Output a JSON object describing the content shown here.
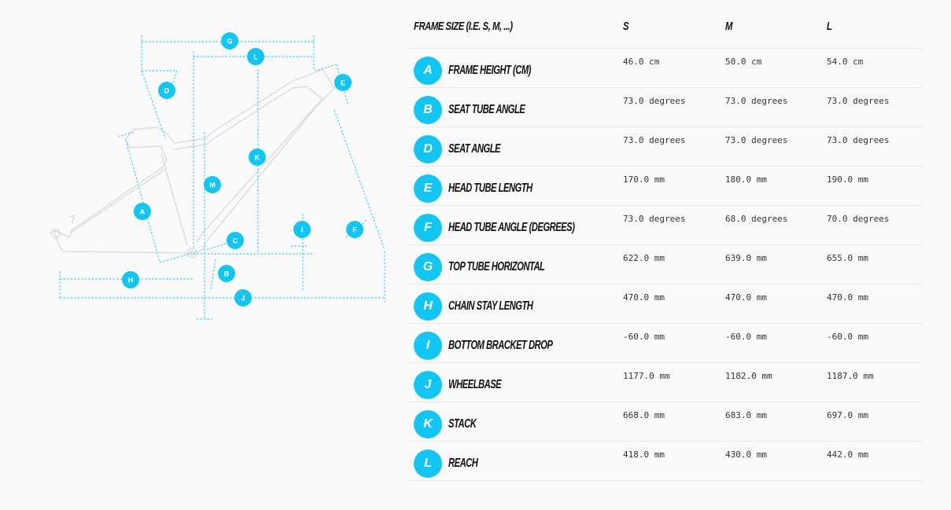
{
  "table": {
    "header": {
      "label": "FRAME SIZE (I.E. S, M, ...)",
      "sizes": [
        "S",
        "M",
        "L"
      ]
    },
    "rows": [
      {
        "letter": "A",
        "label": "FRAME HEIGHT (CM)",
        "values": [
          "46.0 cm",
          "50.0 cm",
          "54.0 cm"
        ]
      },
      {
        "letter": "B",
        "label": "SEAT TUBE ANGLE",
        "values": [
          "73.0 degrees",
          "73.0 degrees",
          "73.0 degrees"
        ]
      },
      {
        "letter": "D",
        "label": "SEAT ANGLE",
        "values": [
          "73.0 degrees",
          "73.0 degrees",
          "73.0 degrees"
        ]
      },
      {
        "letter": "E",
        "label": "HEAD TUBE LENGTH",
        "values": [
          "170.0 mm",
          "180.0 mm",
          "190.0 mm"
        ]
      },
      {
        "letter": "F",
        "label": "HEAD TUBE ANGLE (DEGREES)",
        "values": [
          "73.0 degrees",
          "68.0 degrees",
          "70.0 degrees"
        ]
      },
      {
        "letter": "G",
        "label": "TOP TUBE HORIZONTAL",
        "values": [
          "622.0 mm",
          "639.0 mm",
          "655.0 mm"
        ]
      },
      {
        "letter": "H",
        "label": "CHAIN STAY LENGTH",
        "values": [
          "470.0 mm",
          "470.0 mm",
          "470.0 mm"
        ]
      },
      {
        "letter": "I",
        "label": "BOTTOM BRACKET DROP",
        "values": [
          "-60.0 mm",
          "-60.0 mm",
          "-60.0 mm"
        ]
      },
      {
        "letter": "J",
        "label": "WHEELBASE",
        "values": [
          "1177.0 mm",
          "1182.0 mm",
          "1187.0 mm"
        ]
      },
      {
        "letter": "K",
        "label": "STACK",
        "values": [
          "668.0 mm",
          "683.0 mm",
          "697.0 mm"
        ]
      },
      {
        "letter": "L",
        "label": "REACH",
        "values": [
          "418.0 mm",
          "430.0 mm",
          "442.0 mm"
        ]
      }
    ]
  },
  "diagram": {
    "markers": [
      "G",
      "L",
      "D",
      "E",
      "K",
      "M",
      "A",
      "C",
      "I",
      "F",
      "B",
      "H",
      "J"
    ]
  },
  "colors": {
    "accent": "#12c6f3",
    "frame_outline": "#d6d6d6",
    "text": "#111111",
    "row_divider": "#e8e8e8"
  }
}
